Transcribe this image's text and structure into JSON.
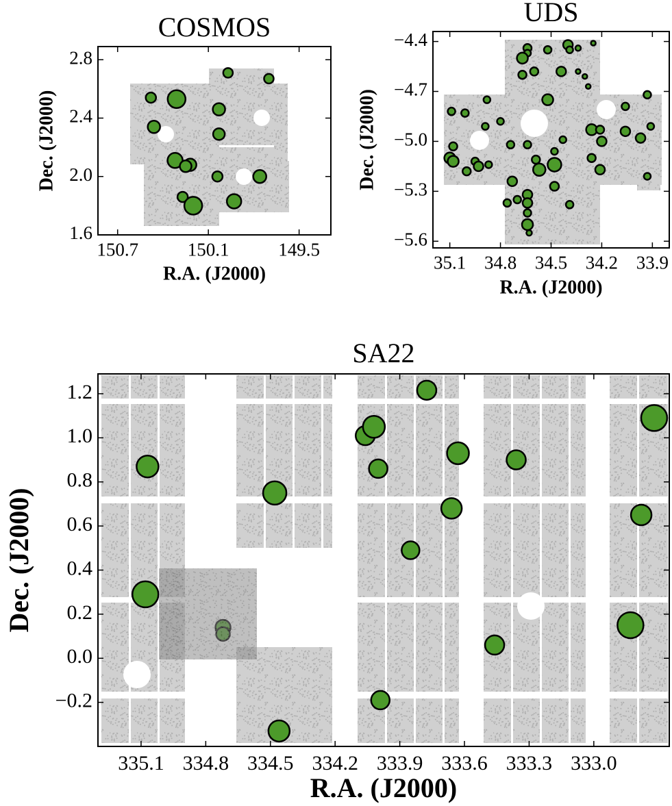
{
  "chart_data": [
    {
      "type": "scatter",
      "title": "COSMOS",
      "xlabel": "R.A. (J2000)",
      "ylabel": "Dec. (J2000)",
      "xlim": [
        150.83,
        149.29
      ],
      "ylim": [
        1.6,
        2.89
      ],
      "xticks": [
        150.7,
        150.1,
        149.5
      ],
      "yticks": [
        1.6,
        {
          "value": 2.0,
          "label": "2.0"
        },
        2.4,
        2.8
      ],
      "series": [
        {
          "color": "#4c9a2a",
          "x": [
            149.97,
            149.7,
            150.48,
            150.31,
            150.03,
            150.46,
            150.03,
            150.32,
            150.22,
            150.25,
            150.04,
            149.76,
            150.27,
            150.2,
            149.93
          ],
          "values": [
            2.71,
            2.67,
            2.54,
            2.53,
            2.46,
            2.34,
            2.29,
            2.11,
            2.08,
            2.07,
            2.0,
            2.0,
            1.86,
            1.8,
            1.83
          ],
          "sizes": [
            14,
            14,
            15,
            26,
            18,
            18,
            17,
            22,
            18,
            17,
            15,
            19,
            15,
            26,
            21
          ]
        }
      ]
    },
    {
      "type": "scatter",
      "title": "UDS",
      "xlabel": "R.A. (J2000)",
      "ylabel": "Dec. (J2000)",
      "xlim": [
        35.2,
        33.8
      ],
      "ylim": [
        -5.64,
        -4.34
      ],
      "xticks": [
        35.1,
        34.8,
        34.5,
        34.2,
        33.9
      ],
      "yticks": [
        {
          "value": -5.6,
          "label": "−5.6"
        },
        {
          "value": -5.3,
          "label": "−5.3"
        },
        {
          "value": -5.0,
          "label": "−5.0"
        },
        {
          "value": -4.7,
          "label": "−4.7"
        },
        {
          "value": -4.4,
          "label": "−4.4"
        }
      ],
      "series": [
        {
          "color": "#4c9a2a",
          "x": [
            34.64,
            34.64,
            34.52,
            34.4,
            34.39,
            34.34,
            34.25,
            34.67,
            34.6,
            34.67,
            34.44,
            34.34,
            34.3,
            34.28,
            34.52,
            33.93,
            35.09,
            35.01,
            34.88,
            34.06,
            34.06,
            33.97,
            33.91,
            34.26,
            34.21,
            34.2,
            34.43,
            34.89,
            34.8,
            35.08,
            35.1,
            35.08,
            34.95,
            34.93,
            34.87,
            35.0,
            34.74,
            34.64,
            34.59,
            34.57,
            34.48,
            34.48,
            34.26,
            34.21,
            34.73,
            34.64,
            34.48,
            34.76,
            34.7,
            34.64,
            34.39,
            34.64,
            34.64,
            34.63,
            33.93
          ],
          "values": [
            -4.44,
            -4.47,
            -4.45,
            -4.42,
            -4.45,
            -4.44,
            -4.41,
            -4.5,
            -4.58,
            -4.6,
            -4.58,
            -4.58,
            -4.61,
            -4.67,
            -4.75,
            -4.72,
            -4.82,
            -4.83,
            -4.75,
            -4.79,
            -4.94,
            -4.98,
            -4.91,
            -4.93,
            -4.93,
            -5.0,
            -4.99,
            -4.91,
            -4.88,
            -5.03,
            -5.1,
            -5.12,
            -5.12,
            -5.15,
            -5.14,
            -5.18,
            -5.02,
            -5.02,
            -5.11,
            -5.17,
            -5.14,
            -5.06,
            -5.1,
            -5.17,
            -5.24,
            -5.32,
            -5.27,
            -5.37,
            -5.35,
            -5.37,
            -5.38,
            -5.43,
            -5.5,
            -5.55,
            -5.21
          ],
          "sizes": [
            12,
            10,
            11,
            14,
            10,
            8,
            7,
            16,
            12,
            12,
            14,
            7,
            7,
            7,
            16,
            11,
            11,
            11,
            10,
            11,
            14,
            14,
            10,
            16,
            12,
            14,
            10,
            10,
            10,
            12,
            16,
            16,
            11,
            14,
            10,
            12,
            11,
            11,
            12,
            18,
            20,
            10,
            12,
            14,
            14,
            14,
            13,
            11,
            11,
            14,
            11,
            11,
            16,
            8,
            10
          ]
        }
      ]
    },
    {
      "type": "scatter",
      "title": "SA22",
      "xlabel": "R.A. (J2000)",
      "ylabel": "Dec. (J2000)",
      "xlim": [
        335.3,
        332.65
      ],
      "ylim": [
        -0.4,
        1.29
      ],
      "xticks": [
        335.1,
        334.8,
        334.5,
        334.2,
        333.9,
        333.6,
        333.3,
        {
          "value": 333.0,
          "label": "333.0"
        }
      ],
      "yticks": [
        {
          "value": -0.2,
          "label": "−0.2"
        },
        {
          "value": 0.0,
          "label": "0.0"
        },
        0.2,
        0.4,
        0.6,
        0.8,
        {
          "value": 1.0,
          "label": "1.0"
        },
        1.2
      ],
      "series": [
        {
          "color": "#4c9a2a",
          "x": [
            333.775,
            332.72,
            334.06,
            334.02,
            335.07,
            333.63,
            334.0,
            333.36,
            334.48,
            333.66,
            332.78,
            333.85,
            335.08,
            332.83,
            334.72,
            334.72,
            333.46,
            333.99,
            334.46
          ],
          "values": [
            1.216,
            1.09,
            1.01,
            1.05,
            0.87,
            0.93,
            0.86,
            0.9,
            0.75,
            0.68,
            0.65,
            0.49,
            0.29,
            0.15,
            0.14,
            0.11,
            0.06,
            -0.19,
            -0.33
          ],
          "sizes": [
            28,
            38,
            28,
            32,
            32,
            32,
            27,
            28,
            34,
            30,
            30,
            26,
            38,
            38,
            22,
            20,
            28,
            27,
            31
          ]
        }
      ]
    }
  ]
}
